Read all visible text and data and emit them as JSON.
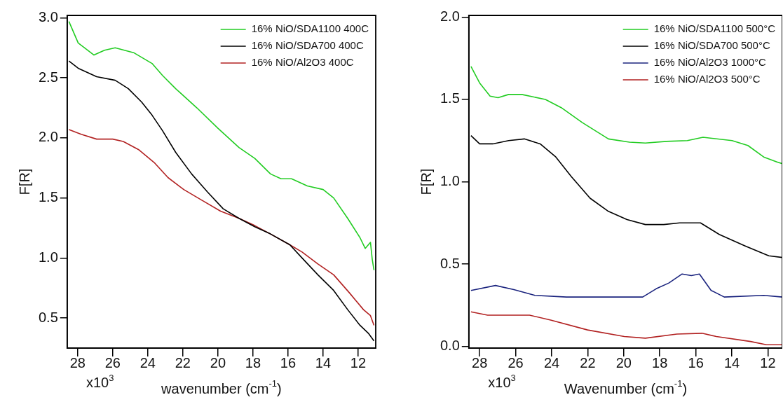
{
  "chart_data": [
    {
      "type": "line",
      "xlabel": "wavenumber (cm$^{-1}$)",
      "ylabel": "F[R]",
      "xlim": [
        28.6,
        11.0
      ],
      "ylim": [
        0.25,
        3.02
      ],
      "annotations": [
        "x10$^{3}$"
      ],
      "xticks": [
        28,
        26,
        24,
        22,
        20,
        18,
        16,
        14,
        12
      ],
      "yticks": [
        0.5,
        {
          "value": 1,
          "label": "1.0"
        },
        1.5,
        {
          "value": 2,
          "label": "2.0"
        },
        2.5,
        {
          "value": 3,
          "label": "3.0"
        }
      ],
      "legend": "top right",
      "marker": "none",
      "line_style": "solid",
      "series": [
        {
          "name": "16% NiO/SDA1100 400C",
          "color": "#22cc22",
          "x": [
            28.5,
            27.97,
            27.07,
            26.47,
            25.86,
            24.81,
            23.76,
            23.16,
            22.41,
            21.2,
            20.0,
            18.8,
            17.9,
            17.0,
            16.4,
            15.8,
            14.9,
            14.0,
            13.4,
            12.6,
            11.9,
            11.6,
            11.3,
            11.2,
            11.1
          ],
          "values": [
            2.97,
            2.79,
            2.69,
            2.73,
            2.75,
            2.71,
            2.62,
            2.52,
            2.41,
            2.25,
            2.08,
            1.92,
            1.83,
            1.7,
            1.66,
            1.66,
            1.6,
            1.57,
            1.5,
            1.33,
            1.17,
            1.08,
            1.13,
            0.99,
            0.9
          ]
        },
        {
          "name": "16% NiO/SDA700 400C",
          "color": "#000000",
          "x": [
            28.5,
            27.97,
            26.92,
            25.86,
            25.11,
            24.36,
            23.76,
            23.16,
            22.41,
            21.5,
            20.6,
            19.7,
            18.8,
            17.9,
            17.0,
            15.9,
            15.2,
            14.3,
            13.4,
            12.6,
            11.9,
            11.4,
            11.1
          ],
          "values": [
            2.64,
            2.58,
            2.51,
            2.48,
            2.41,
            2.3,
            2.19,
            2.06,
            1.88,
            1.7,
            1.55,
            1.41,
            1.33,
            1.26,
            1.2,
            1.11,
            1.0,
            0.86,
            0.73,
            0.57,
            0.44,
            0.37,
            0.31
          ]
        },
        {
          "name": "16% NiO/Al2O3 400C",
          "color": "#b22222",
          "x": [
            28.5,
            27.8,
            26.92,
            26.0,
            25.4,
            24.5,
            23.6,
            22.85,
            21.95,
            20.9,
            19.85,
            18.8,
            17.9,
            17.0,
            15.9,
            15.2,
            14.3,
            13.4,
            12.5,
            11.7,
            11.3,
            11.1
          ],
          "values": [
            2.07,
            2.03,
            1.99,
            1.99,
            1.97,
            1.9,
            1.79,
            1.67,
            1.57,
            1.48,
            1.39,
            1.33,
            1.27,
            1.2,
            1.11,
            1.05,
            0.95,
            0.86,
            0.71,
            0.57,
            0.52,
            0.44
          ]
        }
      ]
    },
    {
      "type": "line",
      "xlabel": "Wavenumber (cm$^{-1}$)",
      "ylabel": "F[R]",
      "xlim": [
        28.6,
        11.2
      ],
      "ylim": [
        -0.01,
        2.01
      ],
      "annotations": [
        "x10$^{3}$"
      ],
      "xticks": [
        28,
        26,
        24,
        22,
        20,
        18,
        16,
        14,
        12
      ],
      "yticks": [
        {
          "value": 0,
          "label": "0.0"
        },
        0.5,
        {
          "value": 1,
          "label": "1.0"
        },
        1.5,
        {
          "value": 2,
          "label": "2.0"
        }
      ],
      "legend": "top right",
      "marker": "none",
      "line_style": "solid",
      "series": [
        {
          "name": "16% NiO/SDA1100 500°C",
          "color": "#22cc22",
          "x": [
            28.48,
            28.0,
            27.42,
            26.98,
            26.39,
            25.66,
            24.35,
            23.47,
            22.31,
            20.85,
            19.68,
            18.8,
            17.63,
            16.47,
            15.6,
            13.99,
            13.11,
            12.23,
            11.5,
            11.2
          ],
          "values": [
            1.7,
            1.6,
            1.52,
            1.51,
            1.53,
            1.53,
            1.5,
            1.45,
            1.36,
            1.26,
            1.24,
            1.235,
            1.245,
            1.25,
            1.27,
            1.25,
            1.22,
            1.15,
            1.12,
            1.11
          ]
        },
        {
          "name": "16% NiO/SDA700 500°C",
          "color": "#000000",
          "x": [
            28.48,
            28.0,
            27.27,
            26.39,
            25.52,
            24.64,
            23.77,
            22.9,
            21.87,
            20.85,
            19.82,
            18.8,
            17.78,
            16.9,
            15.74,
            14.7,
            13.26,
            11.95,
            11.2
          ],
          "values": [
            1.28,
            1.23,
            1.23,
            1.25,
            1.26,
            1.23,
            1.15,
            1.03,
            0.9,
            0.82,
            0.77,
            0.74,
            0.74,
            0.75,
            0.75,
            0.68,
            0.61,
            0.55,
            0.54
          ]
        },
        {
          "name": "16% NiO/Al2O3 1000°C",
          "color": "#1a237e",
          "x": [
            28.48,
            27.12,
            26.1,
            24.93,
            23.18,
            18.95,
            18.2,
            17.5,
            16.76,
            16.25,
            15.8,
            15.15,
            14.42,
            12.23,
            11.2
          ],
          "values": [
            0.34,
            0.37,
            0.345,
            0.31,
            0.3,
            0.3,
            0.35,
            0.385,
            0.44,
            0.43,
            0.44,
            0.34,
            0.3,
            0.31,
            0.3
          ]
        },
        {
          "name": "16% NiO/Al2O3 500°C",
          "color": "#b22222",
          "x": [
            28.48,
            27.56,
            26.1,
            25.23,
            24.06,
            22.01,
            19.97,
            18.8,
            17.05,
            15.66,
            14.86,
            12.96,
            12.08,
            11.2
          ],
          "values": [
            0.21,
            0.19,
            0.19,
            0.19,
            0.16,
            0.1,
            0.06,
            0.05,
            0.075,
            0.08,
            0.06,
            0.03,
            0.01,
            0.01
          ]
        }
      ]
    }
  ]
}
